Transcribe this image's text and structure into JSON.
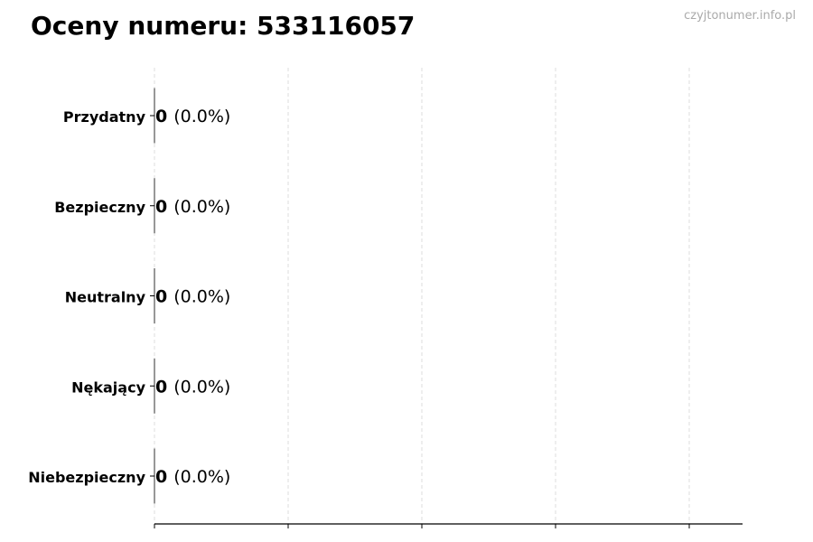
{
  "title": "Oceny numeru: 533116057",
  "watermark": "czyjtonumer.info.pl",
  "chart_data": {
    "type": "bar",
    "orientation": "horizontal",
    "title": "Oceny numeru: 533116057",
    "categories": [
      "Przydatny",
      "Bezpieczny",
      "Neutralny",
      "Nękający",
      "Niebezpieczny"
    ],
    "values": [
      0,
      0,
      0,
      0,
      0
    ],
    "labels": [
      {
        "count": "0",
        "pct": "(0.0%)"
      },
      {
        "count": "0",
        "pct": "(0.0%)"
      },
      {
        "count": "0",
        "pct": "(0.0%)"
      },
      {
        "count": "0",
        "pct": "(0.0%)"
      },
      {
        "count": "0",
        "pct": "(0.0%)"
      }
    ],
    "xlabel": "",
    "ylabel": "",
    "x_tick_labels_shown": false,
    "grid": "vertical dashed",
    "bar_edge_color": "#333333",
    "grid_color": "#dddddd"
  }
}
